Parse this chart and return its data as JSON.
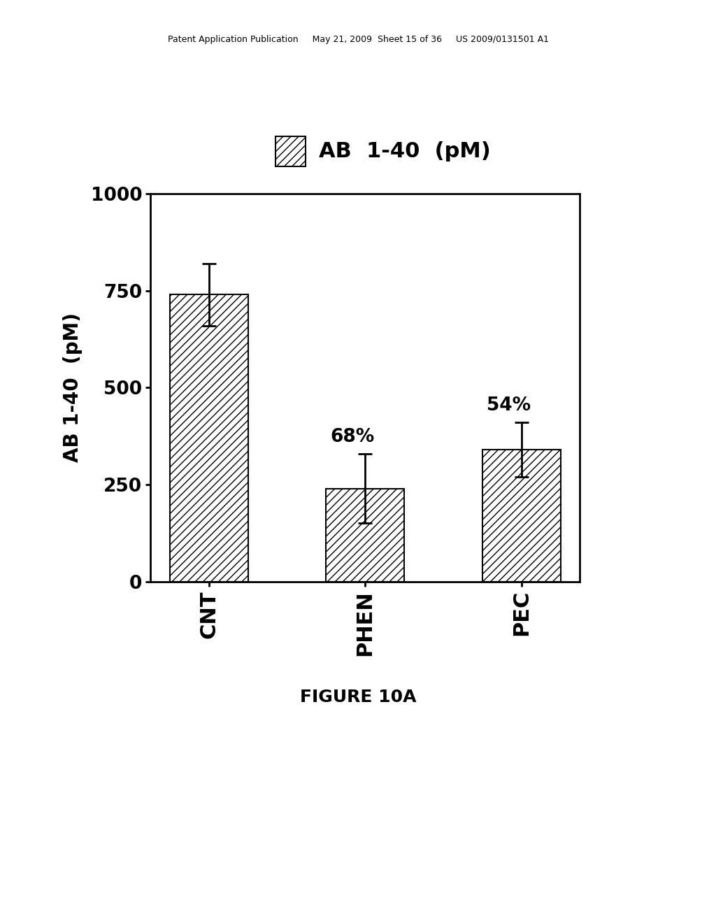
{
  "categories": [
    "CNT",
    "PHEN",
    "PEC"
  ],
  "values": [
    740,
    240,
    340
  ],
  "errors": [
    80,
    90,
    70
  ],
  "bar_color": "white",
  "hatch": "///",
  "edge_color": "black",
  "ylabel": "AB 1-40  (pM)",
  "ylim": [
    0,
    1000
  ],
  "yticks": [
    0,
    250,
    500,
    750,
    1000
  ],
  "ytick_labels": [
    "0",
    "250",
    "500",
    "750",
    "1000"
  ],
  "legend_label": "AB  1-40  (pM)",
  "figure_label": "FIGURE 10A",
  "percent_labels": [
    "",
    "68%",
    "54%"
  ],
  "background_color": "#ffffff",
  "header_text": "Patent Application Publication     May 21, 2009  Sheet 15 of 36     US 2009/0131501 A1",
  "axis_fontsize": 20,
  "tick_fontsize": 19,
  "legend_fontsize": 22,
  "percent_fontsize": 19,
  "figure_caption_fontsize": 18,
  "header_fontsize": 9
}
